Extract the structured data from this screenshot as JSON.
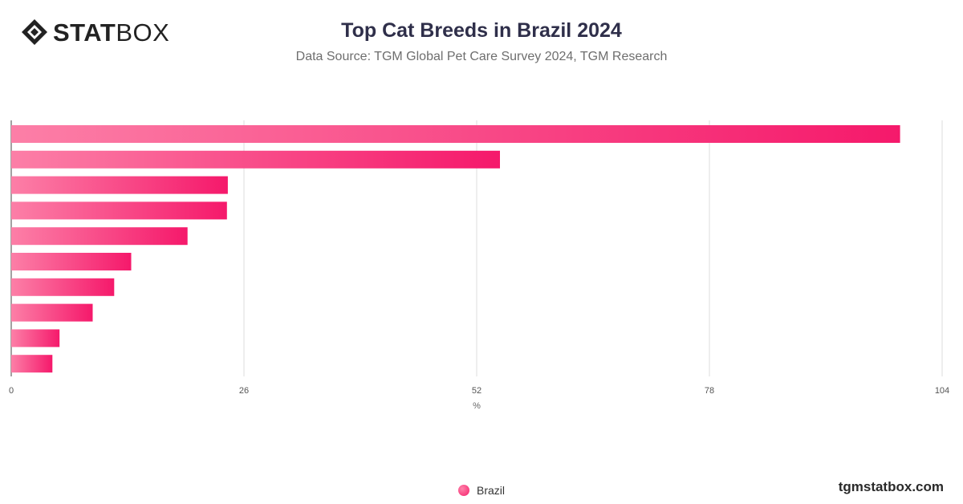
{
  "brand": {
    "logo_bold": "STAT",
    "logo_light": "BOX",
    "website": "tgmstatbox.com"
  },
  "header": {
    "title": "Top Cat Breeds in Brazil 2024",
    "subtitle": "Data Source: TGM Global Pet Care Survey 2024, TGM Research"
  },
  "legend": {
    "label": "Brazil"
  },
  "colors": {
    "bar_start": "#fc7fa7",
    "bar_end": "#f5196b",
    "grid": "#dddddd",
    "axis": "#444444"
  },
  "chart_data": {
    "type": "bar",
    "orientation": "horizontal",
    "title": "Top Cat Breeds in Brazil 2024",
    "xlabel": "%",
    "ylabel": "",
    "xlim": [
      0,
      104
    ],
    "xticks": [
      0,
      26,
      52,
      78,
      104
    ],
    "grid": true,
    "legend_position": "bottom-center",
    "series": [
      {
        "name": "Brazil",
        "values": [
          99.3,
          54.6,
          24.2,
          24.1,
          19.7,
          13.4,
          11.5,
          9.1,
          5.4,
          4.6
        ]
      }
    ]
  }
}
